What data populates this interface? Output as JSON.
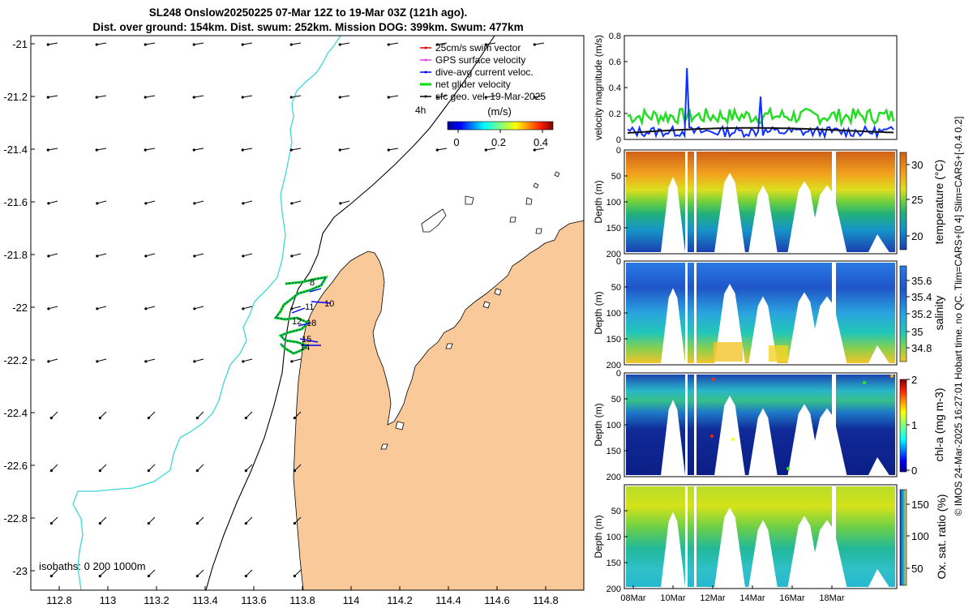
{
  "header": {
    "line1": "SL248 Onslow20250225 07-Mar 12Z to 19-Mar 03Z (121h ago).",
    "line2": "Dist. over ground: 154km. Dist. swum: 252km. Mission DOG: 399km. Swum: 477km"
  },
  "map": {
    "lat_ticks": [
      "-21",
      "-21.2",
      "-21.4",
      "-21.6",
      "-21.8",
      "-22",
      "-22.2",
      "-22.4",
      "-22.6",
      "-22.8",
      "-23"
    ],
    "lon_ticks": [
      "112.8",
      "113",
      "113.2",
      "113.4",
      "113.6",
      "113.8",
      "114",
      "114.2",
      "114.4",
      "114.6",
      "114.8"
    ],
    "isobaths_text": "isobaths: 0   200  1000m",
    "legend": [
      {
        "label": "25cm/s swim vector",
        "color": "#e00000"
      },
      {
        "label": "GPS surface velocity",
        "color": "#e040e0"
      },
      {
        "label": "dive-avg current veloc.",
        "color": "#0000ff"
      },
      {
        "label": "net glider velocity",
        "color": "#00e000"
      },
      {
        "label": "sfc geo. vel. 19-Mar-2025",
        "color": "#000000"
      }
    ],
    "legend_4h": "4h",
    "colorbar": {
      "label": "(m/s)",
      "ticks": [
        "0",
        "0.2",
        "0.4"
      ]
    },
    "track_labels": [
      "8",
      "11",
      "10",
      "12",
      "18",
      "15",
      "14"
    ],
    "colors": {
      "land": "#f9c99a",
      "isobath_200": "#000000",
      "isobath_1000": "#3ed8d8"
    }
  },
  "panels": {
    "velocity": {
      "ylabel": "velocity magnitude (m/s)",
      "yticks": [
        "0",
        "0.2",
        "0.4",
        "0.6",
        "0.8"
      ]
    },
    "temperature": {
      "ylabel": "Depth (m)",
      "yticks": [
        "0",
        "50",
        "100",
        "150",
        "200"
      ],
      "cbar_label": "temperature (°C)",
      "cbar_ticks": [
        "20",
        "25",
        "30"
      ]
    },
    "salinity": {
      "ylabel": "Depth (m)",
      "yticks": [
        "0",
        "50",
        "100",
        "150",
        "200"
      ],
      "cbar_label": "salinity",
      "cbar_ticks": [
        "34.8",
        "35",
        "35.2",
        "35.4",
        "35.6"
      ]
    },
    "chla": {
      "ylabel": "Depth (m)",
      "yticks": [
        "0",
        "50",
        "100",
        "150",
        "200"
      ],
      "cbar_label": "chl-a (mg m-3)",
      "cbar_ticks": [
        "0",
        "1",
        "2"
      ]
    },
    "oxygen": {
      "ylabel": "Depth (m)",
      "yticks": [
        "50",
        "100",
        "150",
        "200"
      ],
      "cbar_label": "Ox. sat. ratio (%)",
      "cbar_ticks": [
        "50",
        "100",
        "150"
      ]
    },
    "xticks": [
      "08Mar",
      "10Mar",
      "12Mar",
      "14Mar",
      "16Mar",
      "18Mar"
    ]
  },
  "side_caption": "© IMOS 24-Mar-2025 16:27:01 Hobart time. no QC. Tlim=CARS+[0 4] Slim=CARS+[-0.4 0.2]"
}
